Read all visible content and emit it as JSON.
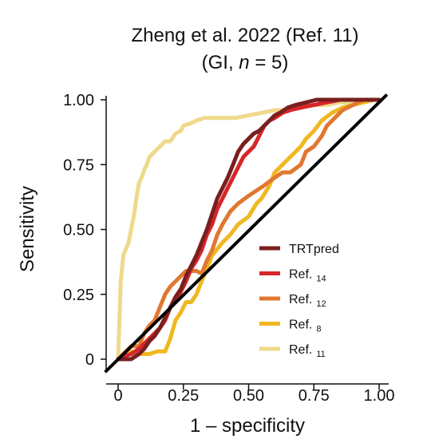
{
  "chart_data": {
    "type": "line",
    "title_line1": "Zheng et al. 2022 (Ref. 11)",
    "title_line2_pre": "(GI, ",
    "title_line2_var": "n",
    "title_line2_post": " = 5)",
    "xlabel": "1 – specificity",
    "ylabel": "Sensitivity",
    "xlim": [
      0,
      1
    ],
    "ylim": [
      0,
      1
    ],
    "x_ticks": [
      {
        "value": 0,
        "label": "0"
      },
      {
        "value": 0.25,
        "label": "0.25"
      },
      {
        "value": 0.5,
        "label": "0.50"
      },
      {
        "value": 0.75,
        "label": "0.75"
      },
      {
        "value": 1,
        "label": "1.00"
      }
    ],
    "y_ticks": [
      {
        "value": 0,
        "label": "0"
      },
      {
        "value": 0.25,
        "label": "0.25"
      },
      {
        "value": 0.5,
        "label": "0.50"
      },
      {
        "value": 0.75,
        "label": "0.75"
      },
      {
        "value": 1,
        "label": "1.00"
      }
    ],
    "grid": false,
    "legend_position": "bottom-right",
    "diagonal": {
      "color": "#000000",
      "points": [
        [
          -0.05,
          -0.05
        ],
        [
          1.03,
          1.02
        ]
      ]
    },
    "series": [
      {
        "name": "Ref.",
        "sub": "11",
        "color": "#efd98a",
        "points": [
          [
            0.0,
            0.0
          ],
          [
            0.01,
            0.3
          ],
          [
            0.02,
            0.4
          ],
          [
            0.04,
            0.45
          ],
          [
            0.05,
            0.5
          ],
          [
            0.06,
            0.55
          ],
          [
            0.07,
            0.62
          ],
          [
            0.08,
            0.68
          ],
          [
            0.09,
            0.7
          ],
          [
            0.1,
            0.73
          ],
          [
            0.11,
            0.75
          ],
          [
            0.12,
            0.78
          ],
          [
            0.14,
            0.8
          ],
          [
            0.16,
            0.82
          ],
          [
            0.18,
            0.84
          ],
          [
            0.2,
            0.84
          ],
          [
            0.22,
            0.87
          ],
          [
            0.24,
            0.88
          ],
          [
            0.25,
            0.9
          ],
          [
            0.28,
            0.91
          ],
          [
            0.3,
            0.92
          ],
          [
            0.33,
            0.93
          ],
          [
            0.38,
            0.93
          ],
          [
            0.45,
            0.93
          ],
          [
            0.5,
            0.94
          ],
          [
            0.55,
            0.95
          ],
          [
            0.6,
            0.96
          ],
          [
            0.65,
            0.96
          ],
          [
            0.7,
            0.97
          ],
          [
            0.75,
            0.98
          ],
          [
            0.8,
            0.98
          ],
          [
            0.85,
            0.99
          ],
          [
            0.9,
            0.99
          ],
          [
            0.95,
            1.0
          ],
          [
            1.0,
            1.0
          ]
        ]
      },
      {
        "name": "Ref.",
        "sub": "8",
        "color": "#f0b820",
        "points": [
          [
            0.0,
            0.0
          ],
          [
            0.02,
            0.0
          ],
          [
            0.03,
            0.02
          ],
          [
            0.05,
            0.03
          ],
          [
            0.08,
            0.02
          ],
          [
            0.12,
            0.02
          ],
          [
            0.15,
            0.03
          ],
          [
            0.18,
            0.03
          ],
          [
            0.2,
            0.08
          ],
          [
            0.22,
            0.15
          ],
          [
            0.24,
            0.18
          ],
          [
            0.26,
            0.22
          ],
          [
            0.28,
            0.22
          ],
          [
            0.3,
            0.25
          ],
          [
            0.32,
            0.3
          ],
          [
            0.34,
            0.35
          ],
          [
            0.36,
            0.4
          ],
          [
            0.4,
            0.45
          ],
          [
            0.43,
            0.48
          ],
          [
            0.46,
            0.52
          ],
          [
            0.5,
            0.55
          ],
          [
            0.53,
            0.6
          ],
          [
            0.55,
            0.62
          ],
          [
            0.58,
            0.67
          ],
          [
            0.6,
            0.72
          ],
          [
            0.63,
            0.75
          ],
          [
            0.66,
            0.78
          ],
          [
            0.7,
            0.82
          ],
          [
            0.72,
            0.85
          ],
          [
            0.75,
            0.88
          ],
          [
            0.78,
            0.92
          ],
          [
            0.82,
            0.95
          ],
          [
            0.86,
            0.97
          ],
          [
            0.9,
            0.98
          ],
          [
            0.94,
            0.99
          ],
          [
            0.98,
            1.0
          ]
        ]
      },
      {
        "name": "Ref.",
        "sub": "12",
        "color": "#e07830",
        "points": [
          [
            0.0,
            0.0
          ],
          [
            0.01,
            0.01
          ],
          [
            0.03,
            0.03
          ],
          [
            0.05,
            0.05
          ],
          [
            0.08,
            0.05
          ],
          [
            0.1,
            0.1
          ],
          [
            0.12,
            0.13
          ],
          [
            0.14,
            0.15
          ],
          [
            0.16,
            0.2
          ],
          [
            0.18,
            0.25
          ],
          [
            0.2,
            0.28
          ],
          [
            0.22,
            0.3
          ],
          [
            0.24,
            0.32
          ],
          [
            0.26,
            0.34
          ],
          [
            0.28,
            0.34
          ],
          [
            0.3,
            0.34
          ],
          [
            0.32,
            0.33
          ],
          [
            0.34,
            0.38
          ],
          [
            0.36,
            0.42
          ],
          [
            0.38,
            0.48
          ],
          [
            0.4,
            0.52
          ],
          [
            0.43,
            0.57
          ],
          [
            0.46,
            0.6
          ],
          [
            0.5,
            0.63
          ],
          [
            0.53,
            0.65
          ],
          [
            0.56,
            0.67
          ],
          [
            0.6,
            0.7
          ],
          [
            0.63,
            0.72
          ],
          [
            0.66,
            0.72
          ],
          [
            0.7,
            0.75
          ],
          [
            0.72,
            0.8
          ],
          [
            0.75,
            0.82
          ],
          [
            0.78,
            0.86
          ],
          [
            0.8,
            0.9
          ],
          [
            0.83,
            0.93
          ],
          [
            0.86,
            0.96
          ],
          [
            0.9,
            0.98
          ],
          [
            0.94,
            1.0
          ],
          [
            1.0,
            1.0
          ]
        ]
      },
      {
        "name": "Ref.",
        "sub": "14",
        "color": "#d7262a",
        "points": [
          [
            0.0,
            0.0
          ],
          [
            0.02,
            0.01
          ],
          [
            0.05,
            0.02
          ],
          [
            0.08,
            0.04
          ],
          [
            0.1,
            0.06
          ],
          [
            0.12,
            0.08
          ],
          [
            0.14,
            0.1
          ],
          [
            0.16,
            0.12
          ],
          [
            0.18,
            0.15
          ],
          [
            0.2,
            0.2
          ],
          [
            0.22,
            0.22
          ],
          [
            0.24,
            0.26
          ],
          [
            0.26,
            0.3
          ],
          [
            0.28,
            0.35
          ],
          [
            0.3,
            0.38
          ],
          [
            0.32,
            0.42
          ],
          [
            0.34,
            0.48
          ],
          [
            0.36,
            0.52
          ],
          [
            0.38,
            0.58
          ],
          [
            0.4,
            0.62
          ],
          [
            0.42,
            0.66
          ],
          [
            0.44,
            0.7
          ],
          [
            0.46,
            0.74
          ],
          [
            0.48,
            0.78
          ],
          [
            0.5,
            0.8
          ],
          [
            0.52,
            0.82
          ],
          [
            0.54,
            0.86
          ],
          [
            0.56,
            0.9
          ],
          [
            0.58,
            0.92
          ],
          [
            0.6,
            0.93
          ],
          [
            0.63,
            0.95
          ],
          [
            0.66,
            0.96
          ],
          [
            0.7,
            0.97
          ],
          [
            0.75,
            0.98
          ],
          [
            0.8,
            0.99
          ],
          [
            0.85,
            1.0
          ],
          [
            1.0,
            1.0
          ]
        ]
      },
      {
        "name": "TRTpred",
        "sub": "",
        "color": "#7a1f1f",
        "points": [
          [
            0.0,
            0.0
          ],
          [
            0.02,
            0.0
          ],
          [
            0.05,
            0.0
          ],
          [
            0.08,
            0.02
          ],
          [
            0.1,
            0.04
          ],
          [
            0.12,
            0.07
          ],
          [
            0.14,
            0.09
          ],
          [
            0.16,
            0.12
          ],
          [
            0.18,
            0.16
          ],
          [
            0.2,
            0.2
          ],
          [
            0.22,
            0.24
          ],
          [
            0.24,
            0.27
          ],
          [
            0.26,
            0.32
          ],
          [
            0.28,
            0.36
          ],
          [
            0.3,
            0.4
          ],
          [
            0.32,
            0.45
          ],
          [
            0.34,
            0.5
          ],
          [
            0.36,
            0.56
          ],
          [
            0.38,
            0.62
          ],
          [
            0.4,
            0.66
          ],
          [
            0.42,
            0.7
          ],
          [
            0.44,
            0.75
          ],
          [
            0.46,
            0.8
          ],
          [
            0.48,
            0.83
          ],
          [
            0.5,
            0.85
          ],
          [
            0.52,
            0.87
          ],
          [
            0.54,
            0.88
          ],
          [
            0.56,
            0.9
          ],
          [
            0.58,
            0.92
          ],
          [
            0.6,
            0.94
          ],
          [
            0.62,
            0.95
          ],
          [
            0.65,
            0.97
          ],
          [
            0.68,
            0.98
          ],
          [
            0.72,
            0.99
          ],
          [
            0.76,
            1.0
          ],
          [
            0.82,
            1.0
          ],
          [
            0.9,
            1.0
          ],
          [
            1.0,
            1.0
          ]
        ]
      }
    ],
    "legend_order": [
      4,
      3,
      2,
      1,
      0
    ]
  }
}
